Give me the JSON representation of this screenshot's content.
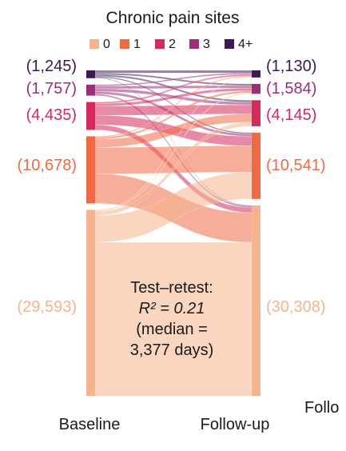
{
  "chart_data": {
    "type": "sankey",
    "title": "Chronic pain sites",
    "legend": {
      "placement": "top",
      "entries": [
        "0",
        "1",
        "2",
        "3",
        "4+"
      ]
    },
    "colors": {
      "0": "#f5b48e",
      "1": "#ee6a45",
      "2": "#d42a5c",
      "3": "#9a2f78",
      "4+": "#3b1a4e"
    },
    "axes": [
      "Baseline",
      "Follow-up"
    ],
    "extra_axis_label": "Follo",
    "categories": [
      "4+",
      "3",
      "2",
      "1",
      "0"
    ],
    "baseline_counts": {
      "4+": 1245,
      "3": 1757,
      "2": 4435,
      "1": 10678,
      "0": 29593
    },
    "followup_counts": {
      "4+": 1130,
      "3": 1584,
      "2": 4145,
      "1": 10541,
      "0": 30308
    },
    "baseline_labels": {
      "4+": "(1,245)",
      "3": "(1,757)",
      "2": "(4,435)",
      "1": "(10,678)",
      "0": "(29,593)"
    },
    "followup_labels": {
      "4+": "(1,130)",
      "3": "(1,584)",
      "2": "(4,145)",
      "1": "(10,541)",
      "0": "(30,308)"
    },
    "flows": [
      {
        "from": "4+",
        "to": "4+",
        "value": 420
      },
      {
        "from": "4+",
        "to": "3",
        "value": 270
      },
      {
        "from": "4+",
        "to": "2",
        "value": 280
      },
      {
        "from": "4+",
        "to": "1",
        "value": 180
      },
      {
        "from": "4+",
        "to": "0",
        "value": 95
      },
      {
        "from": "3",
        "to": "4+",
        "value": 230
      },
      {
        "from": "3",
        "to": "3",
        "value": 420
      },
      {
        "from": "3",
        "to": "2",
        "value": 460
      },
      {
        "from": "3",
        "to": "1",
        "value": 400
      },
      {
        "from": "3",
        "to": "0",
        "value": 247
      },
      {
        "from": "2",
        "to": "4+",
        "value": 240
      },
      {
        "from": "2",
        "to": "3",
        "value": 420
      },
      {
        "from": "2",
        "to": "2",
        "value": 1450
      },
      {
        "from": "2",
        "to": "1",
        "value": 1500
      },
      {
        "from": "2",
        "to": "0",
        "value": 825
      },
      {
        "from": "1",
        "to": "4+",
        "value": 150
      },
      {
        "from": "1",
        "to": "3",
        "value": 320
      },
      {
        "from": "1",
        "to": "2",
        "value": 1300
      },
      {
        "from": "1",
        "to": "1",
        "value": 4200
      },
      {
        "from": "1",
        "to": "0",
        "value": 4708
      },
      {
        "from": "0",
        "to": "4+",
        "value": 90
      },
      {
        "from": "0",
        "to": "3",
        "value": 154
      },
      {
        "from": "0",
        "to": "2",
        "value": 655
      },
      {
        "from": "0",
        "to": "1",
        "value": 4261
      },
      {
        "from": "0",
        "to": "0",
        "value": 24433
      }
    ],
    "annotation": [
      "Test–retest:",
      "R² = 0.21",
      "(median =",
      "3,377 days)"
    ]
  }
}
